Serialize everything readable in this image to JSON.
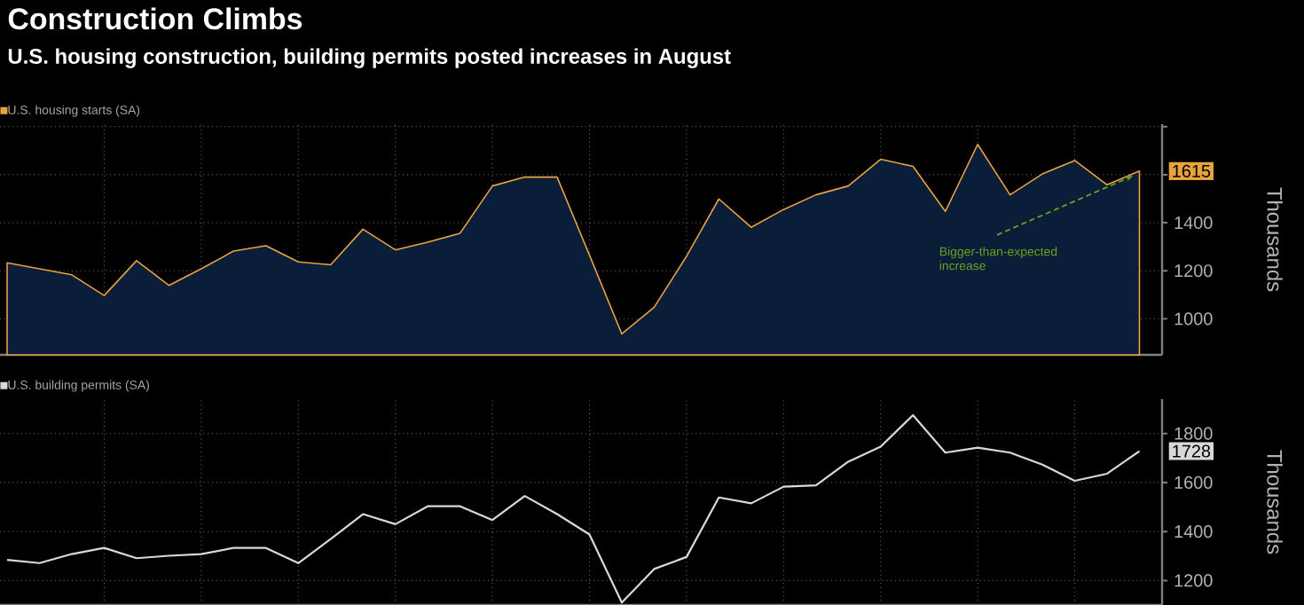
{
  "chart_data": [
    {
      "type": "area",
      "title": "Construction Climbs",
      "subtitle": "U.S. housing construction, building permits posted increases in August",
      "ylabel": "Thousands",
      "categories": [
        null,
        null,
        null,
        null,
        null,
        null,
        null,
        null,
        null,
        null,
        null,
        null,
        null,
        null,
        null,
        null,
        null,
        null,
        null,
        null,
        null,
        null,
        null,
        null,
        null,
        null,
        null,
        null,
        null,
        null,
        null,
        null,
        null,
        null,
        null,
        null
      ],
      "series": [
        {
          "name": "U.S. housing starts (SA)",
          "color": "#e8a33d",
          "values": [
            1233,
            1208,
            1183,
            1097,
            1242,
            1139,
            1208,
            1282,
            1304,
            1237,
            1225,
            1373,
            1287,
            1319,
            1356,
            1553,
            1590,
            1590,
            1265,
            937,
            1048,
            1260,
            1499,
            1381,
            1455,
            1516,
            1553,
            1664,
            1635,
            1447,
            1726,
            1516,
            1603,
            1659,
            1558,
            1615
          ],
          "value_labels": [
            null,
            null,
            null,
            null,
            null,
            null,
            null,
            null,
            null,
            null,
            null,
            null,
            null,
            null,
            null,
            null,
            null,
            null,
            null,
            null,
            null,
            null,
            null,
            null,
            null,
            null,
            null,
            null,
            null,
            null,
            null,
            null,
            null,
            null,
            null,
            "1615"
          ]
        }
      ],
      "annotations": [
        "Bigger-than-expected increase"
      ],
      "ylim": [
        850,
        1810
      ],
      "yticks": [
        1000,
        1200,
        1400,
        {
          "value": 1600,
          "label": null
        },
        {
          "value": 1800,
          "label": null
        }
      ],
      "grid": true,
      "legend": "top left",
      "tick_labels": "y"
    },
    {
      "type": "line",
      "ylabel": "Thousands",
      "categories": [
        null,
        null,
        null,
        null,
        null,
        null,
        null,
        null,
        null,
        null,
        null,
        null,
        null,
        null,
        null,
        null,
        null,
        null,
        null,
        null,
        null,
        null,
        null,
        null,
        null,
        null,
        null,
        null,
        null,
        null,
        null,
        null,
        null,
        null,
        null,
        null
      ],
      "series": [
        {
          "name": "U.S. building permits (SA)",
          "color": "#d9d9d9",
          "values": [
            1284,
            1271,
            1308,
            1333,
            1291,
            1301,
            1308,
            1333,
            1333,
            1271,
            1369,
            1471,
            1430,
            1503,
            1503,
            1447,
            1545,
            1471,
            1388,
            1110,
            1247,
            1296,
            1539,
            1515,
            1583,
            1588,
            1685,
            1746,
            1875,
            1722,
            1742,
            1722,
            1673,
            1607,
            1636,
            1728
          ],
          "value_labels": [
            null,
            null,
            null,
            null,
            null,
            null,
            null,
            null,
            null,
            null,
            null,
            null,
            null,
            null,
            null,
            null,
            null,
            null,
            null,
            null,
            null,
            null,
            null,
            null,
            null,
            null,
            null,
            null,
            null,
            null,
            null,
            null,
            null,
            null,
            null,
            "1728"
          ]
        }
      ],
      "ylim": [
        1100,
        1940
      ],
      "yticks": [
        1200,
        1400,
        1600,
        1800
      ],
      "grid": true,
      "legend": "top left",
      "tick_labels": "y"
    }
  ]
}
